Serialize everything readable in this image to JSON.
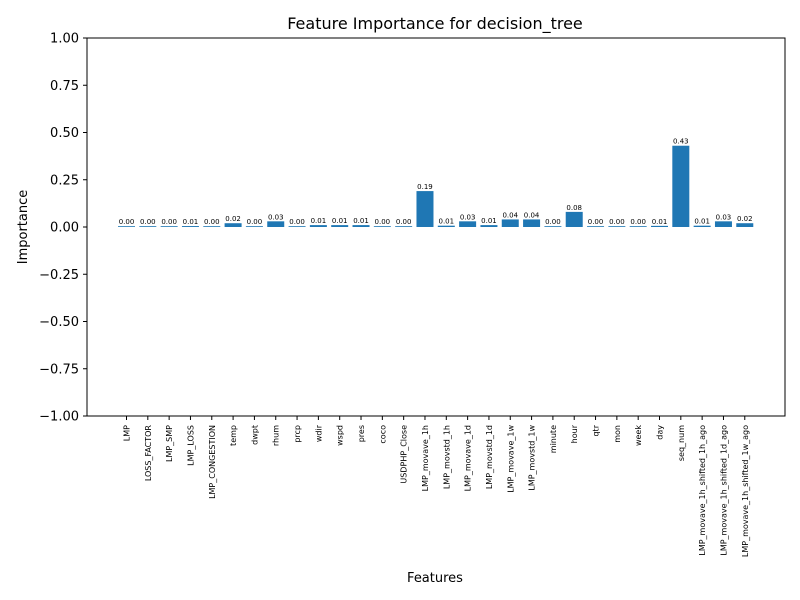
{
  "chart_data": {
    "type": "bar",
    "title": "Feature Importance for decision_tree",
    "xlabel": "Features",
    "ylabel": "Importance",
    "ylim": [
      -1.0,
      1.0
    ],
    "yticks": [
      -1.0,
      -0.75,
      -0.5,
      -0.25,
      0.0,
      0.25,
      0.5,
      0.75,
      1.0
    ],
    "ytick_labels": [
      "−1.00",
      "−0.75",
      "−0.50",
      "−0.25",
      "0.00",
      "0.25",
      "0.50",
      "0.75",
      "1.00"
    ],
    "grid": false,
    "bar_color": "#1f77b4",
    "categories": [
      "LMP",
      "LOSS_FACTOR",
      "LMP_SMP",
      "LMP_LOSS",
      "LMP_CONGESTION",
      "temp",
      "dwpt",
      "rhum",
      "prcp",
      "wdir",
      "wspd",
      "pres",
      "coco",
      "USDPHP_Close",
      "LMP_movave_1h",
      "LMP_movstd_1h",
      "LMP_movave_1d",
      "LMP_movstd_1d",
      "LMP_movave_1w",
      "LMP_movstd_1w",
      "minute",
      "hour",
      "qtr",
      "mon",
      "week",
      "day",
      "seq_num",
      "LMP_movave_1h_shifted_1h_ago",
      "LMP_movave_1h_shifted_1d_ago",
      "LMP_movave_1h_shifted_1w_ago"
    ],
    "values": [
      0.002,
      0.0,
      0.0,
      0.005,
      0.0,
      0.02,
      0.004,
      0.03,
      0.0,
      0.01,
      0.01,
      0.01,
      0.004,
      0.003,
      0.19,
      0.007,
      0.03,
      0.01,
      0.04,
      0.04,
      0.0,
      0.08,
      0.0,
      0.0,
      0.0,
      0.006,
      0.43,
      0.007,
      0.03,
      0.02
    ],
    "data_labels": [
      "0.00",
      "0.00",
      "0.00",
      "0.01",
      "0.00",
      "0.02",
      "0.00",
      "0.03",
      "0.00",
      "0.01",
      "0.01",
      "0.01",
      "0.00",
      "0.00",
      "0.19",
      "0.01",
      "0.03",
      "0.01",
      "0.04",
      "0.04",
      "0.00",
      "0.08",
      "0.00",
      "0.00",
      "0.00",
      "0.01",
      "0.43",
      "0.01",
      "0.03",
      "0.02"
    ]
  }
}
